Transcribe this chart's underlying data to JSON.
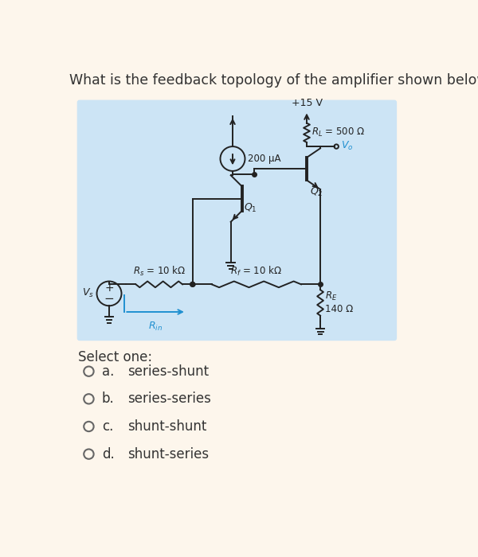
{
  "question": "What is the feedback topology of the amplifier shown below?",
  "bg_color": "#fdf6ec",
  "circuit_bg": "#cce4f5",
  "title_fontsize": 12.5,
  "options": [
    {
      "label": "a.",
      "text": "series-shunt"
    },
    {
      "label": "b.",
      "text": "series-series"
    },
    {
      "label": "c.",
      "text": "shunt-shunt"
    },
    {
      "label": "d.",
      "text": "shunt-series"
    }
  ],
  "select_text": "Select one:",
  "labels": {
    "vcc": "+15 V",
    "RL": "R_L = 500 Ω",
    "Vo": "V_o",
    "Q2": "Q_2",
    "Q1": "Q_1",
    "Rs": "R_s = 10 kΩ",
    "Rf": "R_f = 10 kΩ",
    "RE_line1": "R_E",
    "RE_line2": "140 Ω",
    "Rin": "R_in",
    "current": "200 μA",
    "Vs": "V_s"
  },
  "text_color": "#333333",
  "blue_color": "#2090d0",
  "wire_color": "#222222"
}
